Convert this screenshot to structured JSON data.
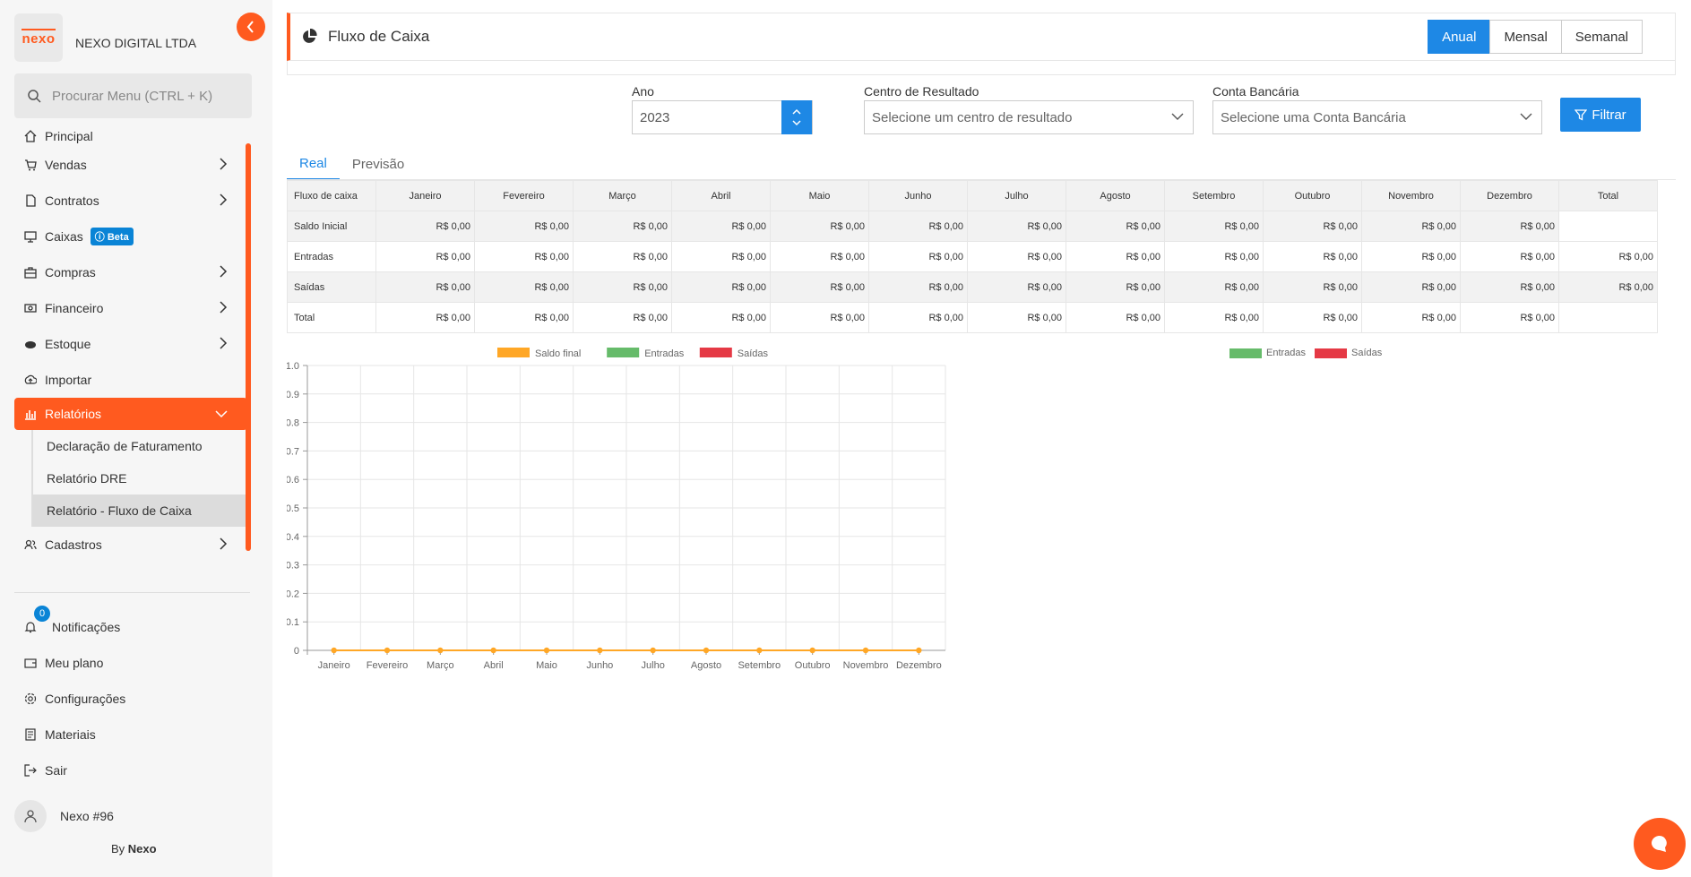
{
  "sidebar": {
    "logo_text": "nexo",
    "company": "NEXO DIGITAL LTDA",
    "search_placeholder": "Procurar Menu (CTRL + K)",
    "items": [
      {
        "label": "Principal",
        "icon": "home-icon"
      },
      {
        "label": "Vendas",
        "icon": "cart-icon"
      },
      {
        "label": "Contratos",
        "icon": "document-icon"
      },
      {
        "label": "Caixas",
        "icon": "monitor-icon",
        "badge": "Beta"
      },
      {
        "label": "Compras",
        "icon": "briefcase-icon"
      },
      {
        "label": "Financeiro",
        "icon": "money-icon"
      },
      {
        "label": "Estoque",
        "icon": "box-icon"
      },
      {
        "label": "Importar",
        "icon": "upload-icon"
      },
      {
        "label": "Relatórios",
        "icon": "bar-chart-icon"
      }
    ],
    "submenu": [
      {
        "label": "Declaração de Faturamento"
      },
      {
        "label": "Relatório DRE"
      },
      {
        "label": "Relatório - Fluxo de Caixa"
      }
    ],
    "cadastros": "Cadastros",
    "bottom": {
      "notifications": "Notificações",
      "notif_count": "0",
      "plan": "Meu plano",
      "settings": "Configurações",
      "materials": "Materiais",
      "logout": "Sair"
    },
    "user": "Nexo #96",
    "by_prefix": "By",
    "by_brand": "Nexo",
    "accent": "#ff5a1f"
  },
  "header": {
    "title": "Fluxo de Caixa",
    "periods": [
      "Anual",
      "Mensal",
      "Semanal"
    ],
    "selected_period": "Anual"
  },
  "filters": {
    "year_label": "Ano",
    "year_value": "2023",
    "center_label": "Centro de Resultado",
    "center_placeholder": "Selecione um centro de resultado",
    "account_label": "Conta Bancária",
    "account_placeholder": "Selecione uma Conta Bancária",
    "filter_button": "Filtrar"
  },
  "tabs": [
    "Real",
    "Previsão"
  ],
  "table": {
    "corner": "Fluxo de caixa",
    "columns": [
      "Janeiro",
      "Fevereiro",
      "Março",
      "Abril",
      "Maio",
      "Junho",
      "Julho",
      "Agosto",
      "Setembro",
      "Outubro",
      "Novembro",
      "Dezembro",
      "Total"
    ],
    "rows": [
      {
        "label": "Saldo Inicial",
        "values": [
          "R$ 0,00",
          "R$ 0,00",
          "R$ 0,00",
          "R$ 0,00",
          "R$ 0,00",
          "R$ 0,00",
          "R$ 0,00",
          "R$ 0,00",
          "R$ 0,00",
          "R$ 0,00",
          "R$ 0,00",
          "R$ 0,00",
          ""
        ]
      },
      {
        "label": "Entradas",
        "values": [
          "R$ 0,00",
          "R$ 0,00",
          "R$ 0,00",
          "R$ 0,00",
          "R$ 0,00",
          "R$ 0,00",
          "R$ 0,00",
          "R$ 0,00",
          "R$ 0,00",
          "R$ 0,00",
          "R$ 0,00",
          "R$ 0,00",
          "R$ 0,00"
        ]
      },
      {
        "label": "Saídas",
        "values": [
          "R$ 0,00",
          "R$ 0,00",
          "R$ 0,00",
          "R$ 0,00",
          "R$ 0,00",
          "R$ 0,00",
          "R$ 0,00",
          "R$ 0,00",
          "R$ 0,00",
          "R$ 0,00",
          "R$ 0,00",
          "R$ 0,00",
          "R$ 0,00"
        ]
      },
      {
        "label": "Total",
        "values": [
          "R$ 0,00",
          "R$ 0,00",
          "R$ 0,00",
          "R$ 0,00",
          "R$ 0,00",
          "R$ 0,00",
          "R$ 0,00",
          "R$ 0,00",
          "R$ 0,00",
          "R$ 0,00",
          "R$ 0,00",
          "R$ 0,00",
          ""
        ]
      }
    ]
  },
  "chart_data": [
    {
      "type": "line",
      "categories": [
        "Janeiro",
        "Fevereiro",
        "Março",
        "Abril",
        "Maio",
        "Junho",
        "Julho",
        "Agosto",
        "Setembro",
        "Outubro",
        "Novembro",
        "Dezembro"
      ],
      "series": [
        {
          "name": "Saldo final",
          "type": "line",
          "color": "#ffa726",
          "values": [
            0,
            0,
            0,
            0,
            0,
            0,
            0,
            0,
            0,
            0,
            0,
            0
          ]
        },
        {
          "name": "Entradas",
          "type": "bar",
          "color": "#66bb6a",
          "values": [
            0,
            0,
            0,
            0,
            0,
            0,
            0,
            0,
            0,
            0,
            0,
            0
          ]
        },
        {
          "name": "Saídas",
          "type": "bar",
          "color": "#e53945",
          "values": [
            0,
            0,
            0,
            0,
            0,
            0,
            0,
            0,
            0,
            0,
            0,
            0
          ]
        }
      ],
      "ylim": [
        0,
        1.0
      ],
      "yticks": [
        "0",
        "0.1",
        "0.2",
        "0.3",
        "0.4",
        "0.5",
        "0.6",
        "0.7",
        "0.8",
        "0.9",
        "1.0"
      ],
      "legend": "top",
      "grid": true
    },
    {
      "type": "pie",
      "series": [
        {
          "name": "Entradas",
          "color": "#66bb6a",
          "values": []
        },
        {
          "name": "Saídas",
          "color": "#e53945",
          "values": []
        }
      ],
      "legend": "top"
    }
  ]
}
